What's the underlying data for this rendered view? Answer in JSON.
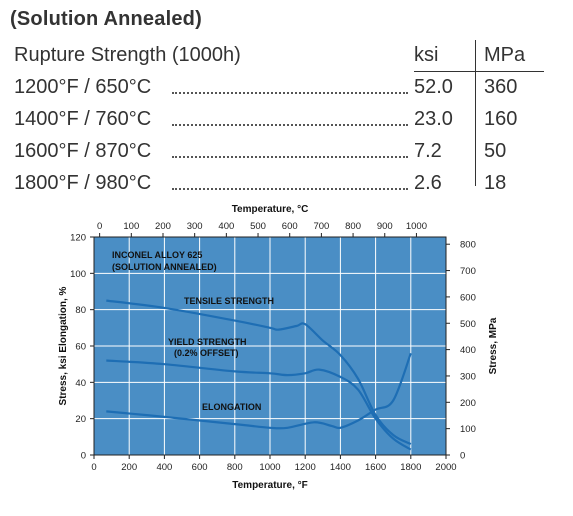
{
  "heading": "(Solution Annealed)",
  "table": {
    "title": "Rupture Strength (1000h)",
    "col_ksi": "ksi",
    "col_mpa": "MPa",
    "rows": [
      {
        "temp": "1200°F / 650°C",
        "ksi": "52.0",
        "mpa": "360"
      },
      {
        "temp": "1400°F / 760°C",
        "ksi": "23.0",
        "mpa": "160"
      },
      {
        "temp": "1600°F / 870°C",
        "ksi": "7.2",
        "mpa": "50"
      },
      {
        "temp": "1800°F / 980°C",
        "ksi": "2.6",
        "mpa": "18"
      }
    ]
  },
  "chart_data": {
    "type": "line",
    "plot_color": "#4a8ec5",
    "line_color": "#1e6eb4",
    "grid": true,
    "alloy_label_1": "INCONEL ALLOY 625",
    "alloy_label_2": "(SOLUTION ANNEALED)",
    "xlabel_bottom": "Temperature, °F",
    "xlabel_top": "Temperature, °C",
    "ylabel_left": "Stress, ksi   Elongation, %",
    "ylabel_right": "Stress, MPa",
    "xlim": [
      0,
      2000
    ],
    "ylim": [
      0,
      120
    ],
    "x_ticks": [
      0,
      200,
      400,
      600,
      800,
      1000,
      1200,
      1400,
      1600,
      1800,
      2000
    ],
    "y_ticks": [
      0,
      20,
      40,
      60,
      80,
      100,
      120
    ],
    "top_ticks_c": [
      0,
      100,
      200,
      300,
      400,
      500,
      600,
      700,
      800,
      900,
      1000
    ],
    "right_ticks_mpa": [
      0,
      100,
      200,
      300,
      400,
      500,
      600,
      700,
      800
    ],
    "series": [
      {
        "name": "TENSILE STRENGTH",
        "x": [
          70,
          400,
          800,
          1000,
          1050,
          1150,
          1200,
          1300,
          1400,
          1500,
          1600,
          1700,
          1800
        ],
        "y": [
          85,
          81,
          74,
          70,
          69,
          71,
          72,
          63,
          55,
          42,
          22,
          11,
          6
        ]
      },
      {
        "name": "YIELD STRENGTH",
        "name_line2": "(0.2% OFFSET)",
        "x": [
          70,
          400,
          800,
          1000,
          1100,
          1200,
          1280,
          1400,
          1500,
          1600,
          1700,
          1800
        ],
        "y": [
          52,
          50,
          46,
          45,
          44,
          45,
          47,
          43,
          36,
          20,
          9,
          3
        ]
      },
      {
        "name": "ELONGATION",
        "x": [
          70,
          400,
          800,
          1000,
          1100,
          1250,
          1350,
          1400,
          1500,
          1600,
          1700,
          1800
        ],
        "y": [
          24,
          21,
          17,
          15,
          15,
          18,
          16,
          15,
          19,
          25,
          30,
          56
        ]
      }
    ]
  }
}
